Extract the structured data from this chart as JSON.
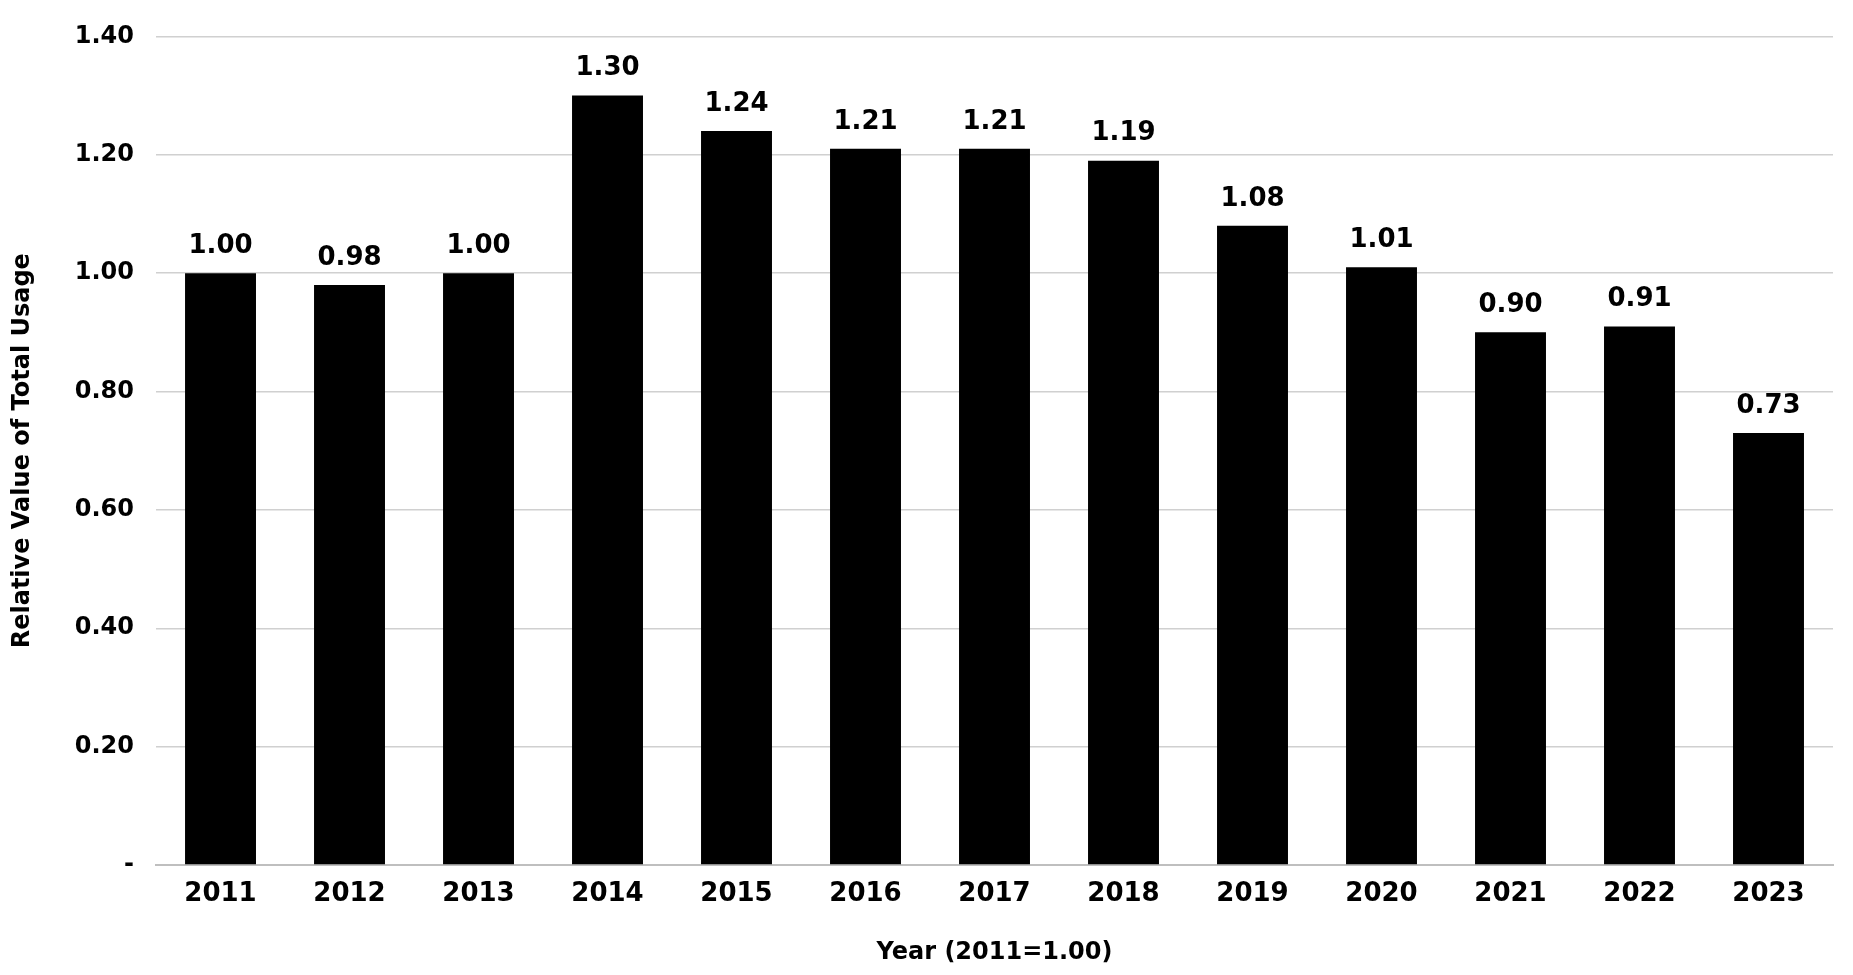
{
  "chart_data": {
    "type": "bar",
    "xlabel": "Year (2011=1.00)",
    "ylabel": "Relative Value of Total Usage",
    "categories": [
      "2011",
      "2012",
      "2013",
      "2014",
      "2015",
      "2016",
      "2017",
      "2018",
      "2019",
      "2020",
      "2021",
      "2022",
      "2023"
    ],
    "values": [
      1.0,
      0.98,
      1.0,
      1.3,
      1.24,
      1.21,
      1.21,
      1.19,
      1.08,
      1.01,
      0.9,
      0.91,
      0.73
    ],
    "value_labels": [
      "1.00",
      "0.98",
      "1.00",
      "1.30",
      "1.24",
      "1.21",
      "1.21",
      "1.19",
      "1.08",
      "1.01",
      "0.90",
      "0.91",
      "0.73"
    ],
    "color": "#000000",
    "ylim": [
      0,
      1.4
    ],
    "yticks": [
      {
        "value": 0,
        "label": "-"
      },
      {
        "value": 0.2,
        "label": "0.20"
      },
      {
        "value": 0.4,
        "label": "0.40"
      },
      {
        "value": 0.6,
        "label": "0.60"
      },
      {
        "value": 0.8,
        "label": "0.80"
      },
      {
        "value": 1.0,
        "label": "1.00"
      },
      {
        "value": 1.2,
        "label": "1.20"
      },
      {
        "value": 1.4,
        "label": "1.40"
      }
    ],
    "grid": "y",
    "legend": false
  }
}
